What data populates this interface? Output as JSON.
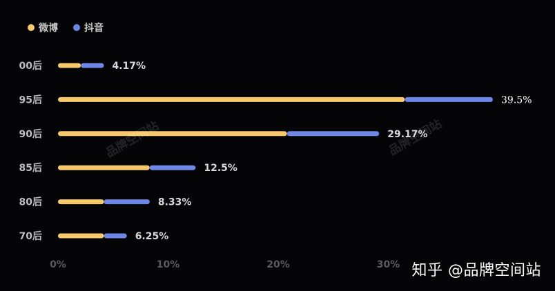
{
  "legend": [
    {
      "name": "微博",
      "color": "#F7C96A"
    },
    {
      "name": "抖音",
      "color": "#6E86E6"
    }
  ],
  "watermark": "品牌空间站",
  "credit": "知乎 @品牌空间站",
  "chart_data": {
    "type": "bar",
    "orientation": "horizontal",
    "stacked": true,
    "categories": [
      "00后",
      "95后",
      "90后",
      "85后",
      "80后",
      "70后"
    ],
    "series": [
      {
        "name": "微博",
        "color": "#F7C96A",
        "values": [
          2.08,
          31.5,
          20.8,
          8.33,
          4.17,
          4.17
        ]
      },
      {
        "name": "抖音",
        "color": "#6E86E6",
        "values": [
          2.09,
          8.0,
          8.37,
          4.17,
          4.16,
          2.08
        ]
      }
    ],
    "totals_labels": [
      "4.17%",
      "39.5%",
      "29.17%",
      "12.5%",
      "8.33%",
      "6.25%"
    ],
    "x_ticks": [
      "0%",
      "10%",
      "20%",
      "30%"
    ],
    "xlim": [
      0,
      40
    ],
    "legend_position": "top-left",
    "grid": false
  }
}
